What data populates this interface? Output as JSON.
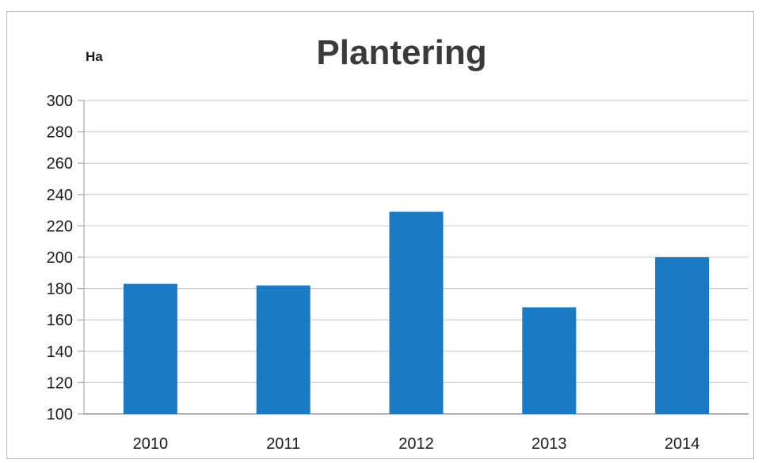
{
  "chart_data": {
    "type": "bar",
    "title": "Plantering",
    "ylabel": "Ha",
    "xlabel": "",
    "categories": [
      "2010",
      "2011",
      "2012",
      "2013",
      "2014"
    ],
    "values": [
      183,
      182,
      229,
      168,
      200
    ],
    "ylim": [
      100,
      300
    ],
    "yticks": [
      100,
      120,
      140,
      160,
      180,
      200,
      220,
      240,
      260,
      280,
      300
    ],
    "grid": true,
    "legend": "none",
    "bar_color": "#1a7bc4"
  }
}
